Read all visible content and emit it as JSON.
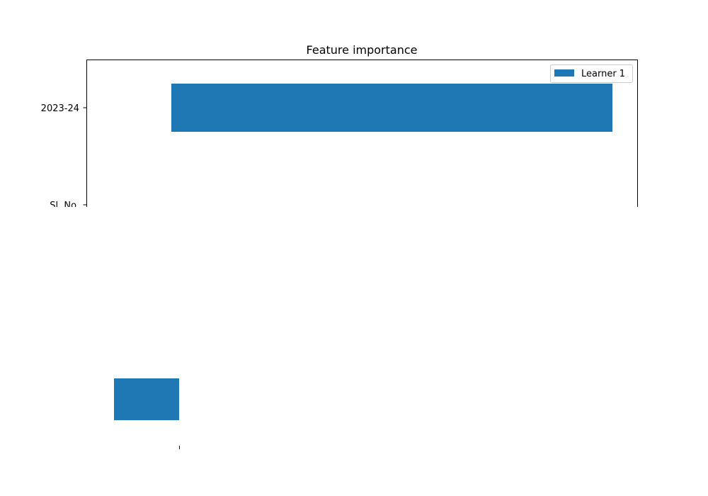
{
  "chart_data": {
    "type": "bar",
    "orientation": "horizontal",
    "title": "Feature importance",
    "xlabel": "",
    "ylabel": "",
    "categories": [
      "Sl. No.",
      "2023-24"
    ],
    "series": [
      {
        "name": "Learner 1",
        "values": [
          0.15,
          1.0
        ]
      }
    ],
    "legend": "top-right",
    "grid": false,
    "colors": {
      "series": "#1f77b4",
      "axes": "#000000",
      "background": "#ffffff"
    }
  }
}
